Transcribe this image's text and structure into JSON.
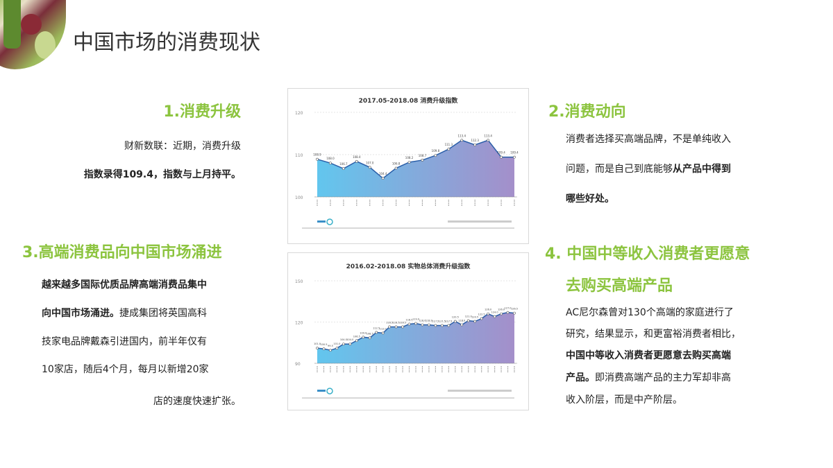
{
  "title": "中国市场的消费现状",
  "s1": {
    "heading": "1.消费升级",
    "lines": [
      "财新数联：近期，消费升级",
      "指数录得109.4，指数与上月持平。"
    ]
  },
  "s2": {
    "heading": "2.消费动向",
    "l1": "消费者选择买高端品牌，不是单纯收入",
    "l2a": "问题，而是自己到底能够",
    "l2b": "从产品中得到",
    "l3": "哪些好处。"
  },
  "s3": {
    "heading": "3.高端消费品向中国市场涌进",
    "l1": "越来越多国际优质品牌高端消费品集中",
    "l2a": "向中国市场涌进。",
    "l2b": "捷成集团将英国高科",
    "l3": "技家电品牌戴森引进国内，前半年仅有",
    "l4": "10家店，随后4个月，每月以新增20家",
    "l5": "店的速度快速扩张。"
  },
  "s4": {
    "heading1": "4. 中国中等收入消费者更愿意",
    "heading2": "去购买高端产品",
    "l1": "AC尼尔森曾对130个高端的家庭进行了",
    "l2": "研究，结果显示，和更富裕消费者相比，",
    "l3": "中国中等收入消费者更愿意去购买高端",
    "l4a": "产品。",
    "l4b": "即消费高端产品的主力军却非高",
    "l5": "收入阶层，而是中产阶层。"
  },
  "colors": {
    "accent": "#8cc43f",
    "area_start": "#62c6ee",
    "area_end": "#a48fca",
    "line": "#2a5ea8"
  },
  "chart_data": [
    {
      "type": "area",
      "title": "2017.05-2018.08 消费升级指数",
      "ylim": [
        100,
        120
      ],
      "yticks": [
        "100",
        "110",
        "120"
      ],
      "values": [
        108.9,
        108.0,
        106.7,
        108.4,
        107.0,
        104.4,
        106.8,
        108.2,
        108.7,
        109.8,
        111.3,
        113.4,
        112.3,
        113.4,
        109.4,
        109.4
      ]
    },
    {
      "type": "area",
      "title": "2016.02-2018.08 实物总体消费升级指数",
      "ylim": [
        90,
        150
      ],
      "yticks": [
        "90",
        "120",
        "150"
      ],
      "values": [
        101,
        100.5,
        99.5,
        101,
        104,
        104,
        106.5,
        109,
        108.5,
        112.5,
        112,
        116.5,
        116.5,
        116.5,
        118.5,
        119,
        118,
        118,
        117.5,
        117.5,
        117.5,
        120.5,
        118,
        121,
        120.5,
        122.5,
        126,
        124,
        126,
        127,
        126.5
      ]
    }
  ]
}
